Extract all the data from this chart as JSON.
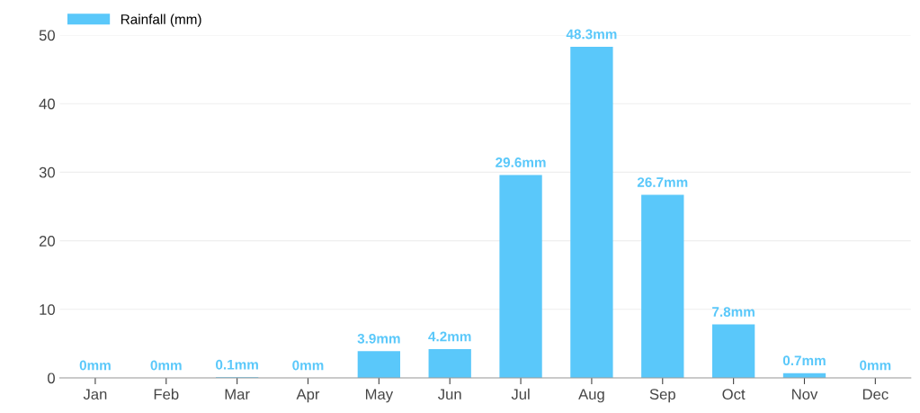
{
  "chart_data": {
    "type": "bar",
    "categories": [
      "Jan",
      "Feb",
      "Mar",
      "Apr",
      "May",
      "Jun",
      "Jul",
      "Aug",
      "Sep",
      "Oct",
      "Nov",
      "Dec"
    ],
    "series": [
      {
        "name": "Rainfall (mm)",
        "color": "#5ac8fa",
        "values": [
          0,
          0,
          0.1,
          0,
          3.9,
          4.2,
          29.6,
          48.3,
          26.7,
          7.8,
          0.7,
          0
        ],
        "value_labels": [
          "0mm",
          "0mm",
          "0.1mm",
          "0mm",
          "3.9mm",
          "4.2mm",
          "29.6mm",
          "48.3mm",
          "26.7mm",
          "7.8mm",
          "0.7mm",
          "0mm"
        ]
      }
    ],
    "ylim": [
      0,
      50
    ],
    "yticks": [
      0,
      10,
      20,
      30,
      40,
      50
    ],
    "grid": "y",
    "legend": "top left"
  }
}
